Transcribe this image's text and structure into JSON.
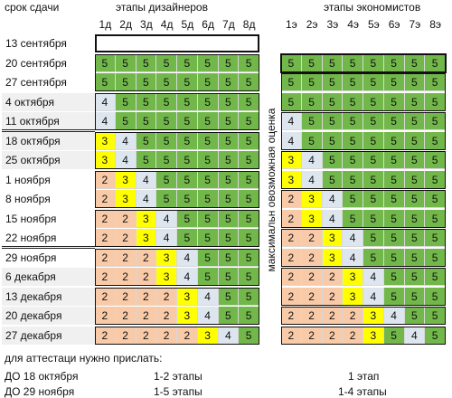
{
  "header": {
    "deadline": "срок сдачи",
    "designers": "этапы дизайнеров",
    "economists": "этапы экономистов",
    "vertical": "максимальн овозможная оценка"
  },
  "designer_stages": [
    "1д",
    "2д",
    "3д",
    "4д",
    "5д",
    "6д",
    "7д",
    "8д"
  ],
  "economist_stages": [
    "1э",
    "2э",
    "3э",
    "4э",
    "5э",
    "6э",
    "7э",
    "8э"
  ],
  "rows": [
    {
      "date": "13 сентября",
      "d": [],
      "e": []
    },
    {
      "date": "20 сентября",
      "d": [
        "5",
        "5",
        "5",
        "5",
        "5",
        "5",
        "5",
        "5"
      ],
      "e": [
        "5",
        "5",
        "5",
        "5",
        "5",
        "5",
        "5",
        "5"
      ]
    },
    {
      "date": "27 сентября",
      "d": [
        "5",
        "5",
        "5",
        "5",
        "5",
        "5",
        "5",
        "5"
      ],
      "e": [
        "5",
        "5",
        "5",
        "5",
        "5",
        "5",
        "5",
        "5"
      ]
    },
    {
      "date": "4 октября",
      "d": [
        "4",
        "5",
        "5",
        "5",
        "5",
        "5",
        "5",
        "5"
      ],
      "e": [
        "5",
        "5",
        "5",
        "5",
        "5",
        "5",
        "5",
        "5"
      ]
    },
    {
      "date": "11 октября",
      "d": [
        "4",
        "5",
        "5",
        "5",
        "5",
        "5",
        "5",
        "5"
      ],
      "e": [
        "4",
        "5",
        "5",
        "5",
        "5",
        "5",
        "5",
        "5"
      ]
    },
    {
      "date": "18 октября",
      "d": [
        "3",
        "4",
        "5",
        "5",
        "5",
        "5",
        "5",
        "5"
      ],
      "e": [
        "4",
        "5",
        "5",
        "5",
        "5",
        "5",
        "5",
        "5"
      ]
    },
    {
      "date": "25 октября",
      "d": [
        "3",
        "4",
        "5",
        "5",
        "5",
        "5",
        "5",
        "5"
      ],
      "e": [
        "3",
        "4",
        "5",
        "5",
        "5",
        "5",
        "5",
        "5"
      ]
    },
    {
      "date": "1 ноября",
      "d": [
        "2",
        "3",
        "4",
        "5",
        "5",
        "5",
        "5",
        "5"
      ],
      "e": [
        "3",
        "4",
        "5",
        "5",
        "5",
        "5",
        "5",
        "5"
      ]
    },
    {
      "date": "8 ноября",
      "d": [
        "2",
        "3",
        "4",
        "5",
        "5",
        "5",
        "5",
        "5"
      ],
      "e": [
        "2",
        "3",
        "4",
        "5",
        "5",
        "5",
        "5",
        "5"
      ]
    },
    {
      "date": "15 ноября",
      "d": [
        "2",
        "2",
        "3",
        "4",
        "5",
        "5",
        "5",
        "5"
      ],
      "e": [
        "2",
        "3",
        "4",
        "5",
        "5",
        "5",
        "5",
        "5"
      ]
    },
    {
      "date": "22 ноября",
      "d": [
        "2",
        "2",
        "3",
        "4",
        "5",
        "5",
        "5",
        "5"
      ],
      "e": [
        "2",
        "2",
        "3",
        "4",
        "5",
        "5",
        "5",
        "5"
      ]
    },
    {
      "date": "29 ноября",
      "d": [
        "2",
        "2",
        "2",
        "3",
        "4",
        "5",
        "5",
        "5"
      ],
      "e": [
        "2",
        "2",
        "3",
        "4",
        "5",
        "5",
        "5",
        "5"
      ]
    },
    {
      "date": "6 декабря",
      "d": [
        "2",
        "2",
        "2",
        "3",
        "4",
        "5",
        "5",
        "5"
      ],
      "e": [
        "2",
        "2",
        "2",
        "3",
        "4",
        "5",
        "5",
        "5"
      ]
    },
    {
      "date": "13 декабря",
      "d": [
        "2",
        "2",
        "2",
        "2",
        "3",
        "4",
        "5",
        "5"
      ],
      "e": [
        "2",
        "2",
        "2",
        "3",
        "4",
        "5",
        "5",
        "5"
      ]
    },
    {
      "date": "20 декабря",
      "d": [
        "2",
        "2",
        "2",
        "2",
        "3",
        "4",
        "5",
        "5"
      ],
      "e": [
        "2",
        "2",
        "2",
        "2",
        "3",
        "4",
        "5",
        "5"
      ]
    },
    {
      "date": "27 декабря",
      "d": [
        "2",
        "2",
        "2",
        "2",
        "2",
        "3",
        "4",
        "5"
      ],
      "e": [
        "2",
        "2",
        "2",
        "2",
        "3",
        "5",
        "4",
        "5"
      ]
    }
  ],
  "footer": {
    "intro": "для аттестаци нужно прислать:",
    "line1": {
      "deadline": "ДО 18 октября",
      "designers": "1-2 этапы",
      "economists": "1 этап"
    },
    "line2": {
      "deadline": "ДО 29 ноября",
      "designers": "1-5 этапы",
      "economists": "1-4 этапы"
    }
  },
  "colors": {
    "score5": "#72b74a",
    "score4": "#dde6ef",
    "score3": "#ffff00",
    "score2": "#f8caa8",
    "label_shade": "#f0f0f0"
  }
}
